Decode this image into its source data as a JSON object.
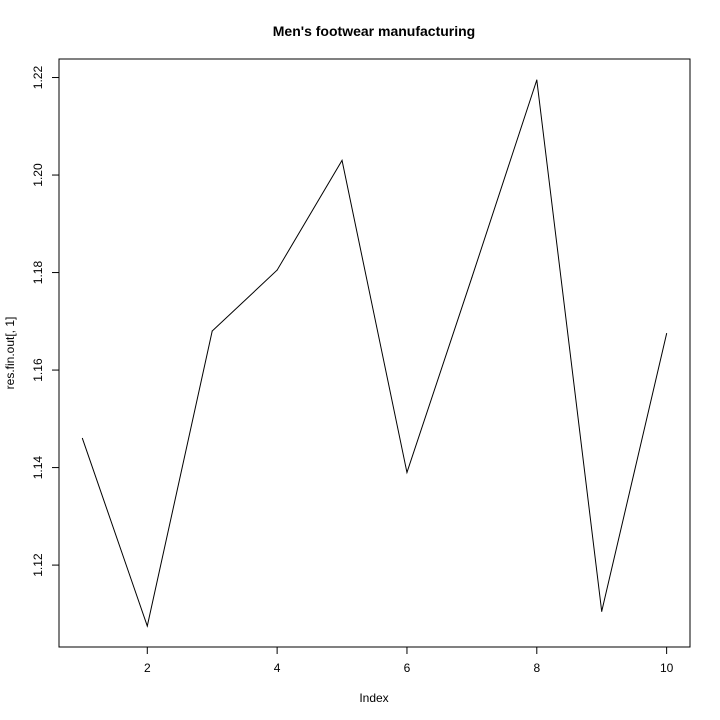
{
  "chart_data": {
    "type": "line",
    "title": "Men's footwear manufacturing",
    "xlabel": "Index",
    "ylabel": "res.fin.out[, 1]",
    "x": [
      1,
      2,
      3,
      4,
      5,
      6,
      7,
      8,
      9,
      10
    ],
    "series": [
      {
        "values": [
          1.146,
          1.1075,
          1.168,
          1.1805,
          1.203,
          1.139,
          1.179,
          1.2195,
          1.1105,
          1.1675
        ]
      }
    ],
    "xlim": [
      0.64,
      10.36
    ],
    "ylim": [
      1.1032,
      1.2238
    ],
    "xticks": [
      2,
      4,
      6,
      8,
      10
    ],
    "yticks": [
      1.12,
      1.14,
      1.16,
      1.18,
      1.2,
      1.22
    ],
    "ytick_labels": [
      "1.12",
      "1.14",
      "1.16",
      "1.18",
      "1.20",
      "1.22"
    ],
    "line_color": "#000000",
    "grid": false,
    "legend": "none"
  }
}
